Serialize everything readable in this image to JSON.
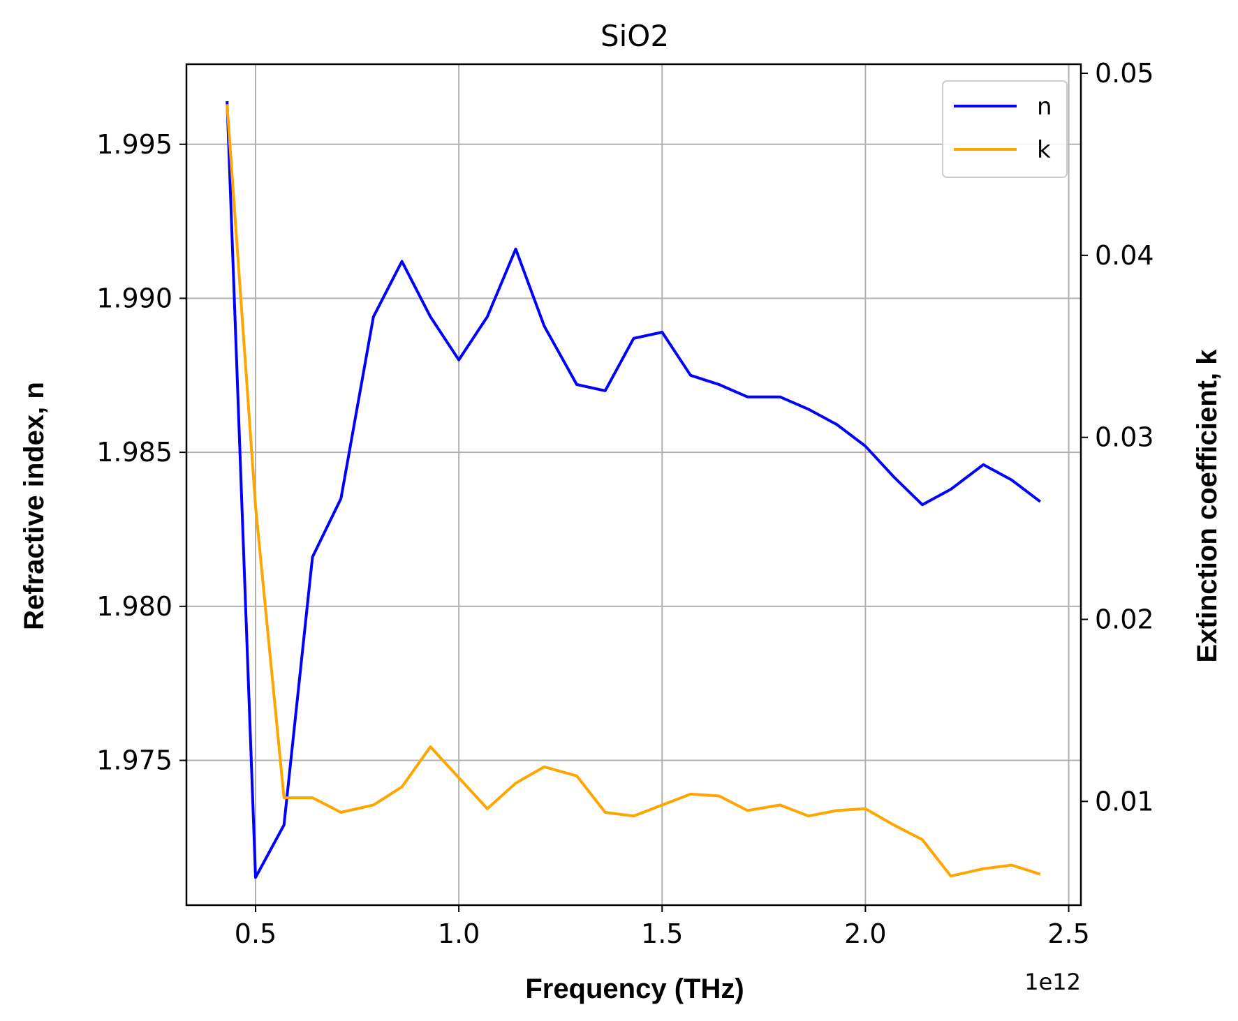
{
  "chart_data": {
    "type": "line",
    "title": "SiO2",
    "xlabel": "Frequency (THz)",
    "ylabel_left": "Refractive index, n",
    "ylabel_right": "Extinction coefficient, k",
    "x_offset_label": "1e12",
    "x_scale": 1000000000000.0,
    "xlim": [
      0.33,
      2.53
    ],
    "ylim_left": [
      1.9703,
      1.9976
    ],
    "ylim_right": [
      0.0043,
      0.0505
    ],
    "x_ticks": [
      0.5,
      1.0,
      1.5,
      2.0,
      2.5
    ],
    "x_tick_labels": [
      "0.5",
      "1.0",
      "1.5",
      "2.0",
      "2.5"
    ],
    "y_left_ticks": [
      1.975,
      1.98,
      1.985,
      1.99,
      1.995
    ],
    "y_left_tick_labels": [
      "1.975",
      "1.980",
      "1.985",
      "1.990",
      "1.995"
    ],
    "y_right_ticks": [
      0.01,
      0.02,
      0.03,
      0.04,
      0.05
    ],
    "y_right_tick_labels": [
      "0.01",
      "0.02",
      "0.03",
      "0.04",
      "0.05"
    ],
    "grid": true,
    "legend_position": "top-right",
    "x": [
      0.43,
      0.5,
      0.57,
      0.64,
      0.71,
      0.79,
      0.86,
      0.93,
      1.0,
      1.07,
      1.14,
      1.21,
      1.29,
      1.36,
      1.43,
      1.5,
      1.57,
      1.64,
      1.71,
      1.79,
      1.86,
      1.93,
      2.0,
      2.07,
      2.14,
      2.21,
      2.29,
      2.36,
      2.43
    ],
    "series": [
      {
        "name": "n",
        "axis": "left",
        "color": "#0000ff",
        "values": [
          1.9964,
          1.9712,
          1.9729,
          1.9816,
          1.9835,
          1.9894,
          1.9912,
          1.9894,
          1.988,
          1.9894,
          1.9916,
          1.9891,
          1.9872,
          1.987,
          1.9887,
          1.9889,
          1.9875,
          1.9872,
          1.9868,
          1.9868,
          1.9864,
          1.9859,
          1.9852,
          1.9842,
          1.9833,
          1.9838,
          1.9846,
          1.9841,
          1.9834
        ]
      },
      {
        "name": "k",
        "axis": "right",
        "color": "#ffa500",
        "values": [
          0.0483,
          0.0262,
          0.0102,
          0.0102,
          0.0094,
          0.0098,
          0.0108,
          0.013,
          0.0113,
          0.0096,
          0.011,
          0.0119,
          0.0114,
          0.0094,
          0.0092,
          0.0098,
          0.0104,
          0.0103,
          0.0095,
          0.0098,
          0.0092,
          0.0095,
          0.0096,
          0.0087,
          0.0079,
          0.0059,
          0.0063,
          0.0065,
          0.006
        ]
      }
    ]
  }
}
